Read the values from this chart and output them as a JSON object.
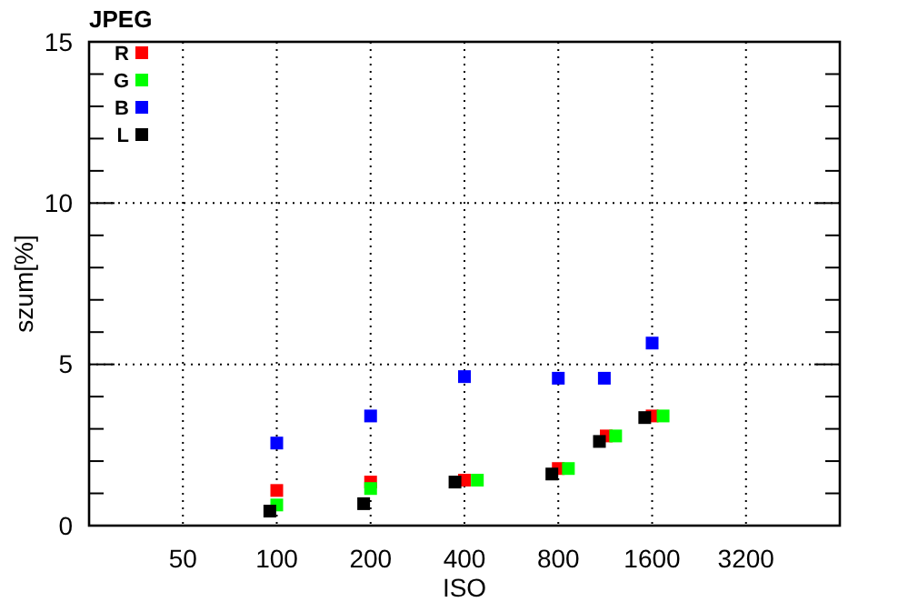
{
  "chart_data": {
    "type": "scatter",
    "xlabel": "ISO",
    "ylabel": "szum[%]",
    "legend_title": "JPEG",
    "legend": "top left",
    "marker": "square",
    "grid": true,
    "log": "x",
    "xlim": [
      25,
      6400
    ],
    "xticks": [
      50,
      100,
      200,
      400,
      800,
      1600,
      3200
    ],
    "ylim": [
      0,
      15
    ],
    "yticks": [
      0,
      {
        "value": 1,
        "label": null
      },
      {
        "value": 2,
        "label": null
      },
      {
        "value": 3,
        "label": null
      },
      {
        "value": 4,
        "label": null
      },
      5,
      {
        "value": 6,
        "label": null
      },
      {
        "value": 7,
        "label": null
      },
      {
        "value": 8,
        "label": null
      },
      {
        "value": 9,
        "label": null
      },
      10,
      {
        "value": 11,
        "label": null
      },
      {
        "value": 12,
        "label": null
      },
      {
        "value": 13,
        "label": null
      },
      {
        "value": 14,
        "label": null
      },
      15
    ],
    "series": [
      {
        "name": "R",
        "color": "#ff0000",
        "x": [
          100,
          200,
          400,
          800,
          1140,
          1600
        ],
        "values": [
          1.09,
          1.35,
          1.41,
          1.77,
          2.78,
          3.4
        ]
      },
      {
        "name": "G",
        "color": "#00ff00",
        "x": [
          100,
          200,
          440,
          862,
          1222,
          1735
        ],
        "values": [
          0.64,
          1.15,
          1.41,
          1.77,
          2.78,
          3.4
        ]
      },
      {
        "name": "B",
        "color": "#0000ff",
        "x": [
          100,
          200,
          400,
          800,
          1124,
          1600
        ],
        "values": [
          2.56,
          3.4,
          4.62,
          4.57,
          4.57,
          5.66
        ]
      },
      {
        "name": "L",
        "color": "#000000",
        "x": [
          95,
          190,
          373,
          763,
          1084,
          1515
        ],
        "values": [
          0.45,
          0.68,
          1.35,
          1.6,
          2.61,
          3.35
        ]
      }
    ]
  }
}
